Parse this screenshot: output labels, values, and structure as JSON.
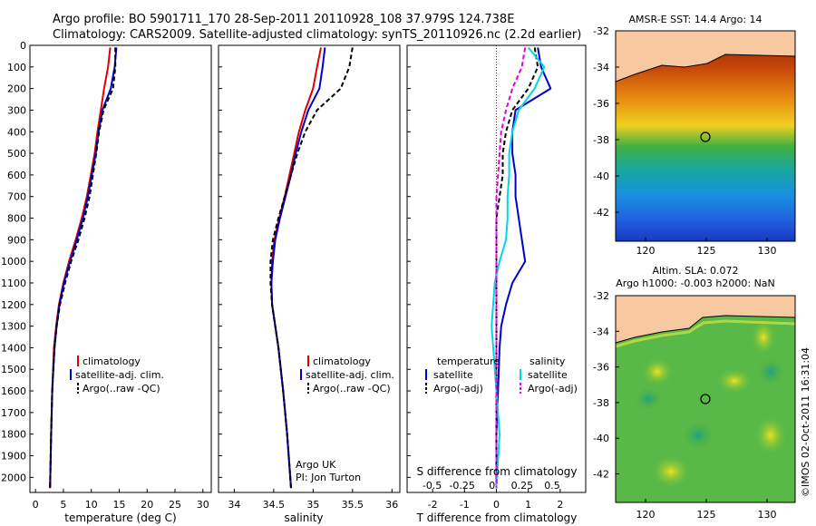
{
  "header": {
    "line1": "Argo profile: BO 5901711_170 28-Sep-2011 20110928_108 37.979S 124.738E",
    "line2": "Climatology: CARS2009. Satellite-adjusted climatology: synTS_20110926.nc (2.2d earlier)"
  },
  "colors": {
    "climatology": "#e00000",
    "satellite_adj": "#0000cc",
    "argo": "#000000",
    "s_satellite": "#00d8e0",
    "s_argo": "#e000e0",
    "land": "#f8c8a0"
  },
  "legend": {
    "climatology": "climatology",
    "satellite_adj": "satellite-adj. clim.",
    "argo": "Argo(..raw -QC)",
    "temperature": "temperature",
    "salinity": "salinity",
    "satellite": "satellite",
    "argo_adj": "Argo(-adj)"
  },
  "credit": {
    "line1": "Argo UK",
    "line2": "PI: Jon Turton"
  },
  "s_diff_label": "S difference from climatology",
  "right_panel": {
    "sst_title": "AMSR-E SST: 14.4 Argo: 14",
    "sla_title1": "Altim. SLA: 0.072",
    "sla_title2": "Argo h1000: -0.003 h2000: NaN",
    "watermark": "©IMOS 02-Oct-2011 16:31:04",
    "lat_ticks": [
      "-32",
      "-34",
      "-36",
      "-38",
      "-40",
      "-42"
    ],
    "lon_ticks": [
      "120",
      "125",
      "130"
    ],
    "profile_marker": {
      "lon": 124.738,
      "lat": -37.979
    }
  },
  "chart_data": [
    {
      "type": "line",
      "name": "temperature-profile",
      "xlabel": "temperature (deg C)",
      "ylabel": "",
      "xlim": [
        -1,
        31.5
      ],
      "ylim": [
        2070,
        0
      ],
      "x_ticks": [
        0,
        5,
        10,
        15,
        20,
        25,
        30
      ],
      "y_ticks": [
        0,
        100,
        200,
        300,
        400,
        500,
        600,
        700,
        800,
        900,
        1000,
        1100,
        1200,
        1300,
        1400,
        1500,
        1600,
        1700,
        1800,
        1900,
        2000
      ],
      "depth": [
        10,
        100,
        200,
        300,
        400,
        500,
        600,
        700,
        800,
        900,
        1000,
        1100,
        1200,
        1300,
        1400,
        1600,
        1800,
        2050
      ],
      "series": [
        {
          "name": "climatology",
          "values": [
            13.4,
            13.0,
            12.3,
            11.7,
            11.1,
            10.6,
            9.9,
            9.2,
            8.3,
            7.2,
            6.0,
            5.0,
            4.2,
            3.7,
            3.3,
            3.0,
            2.8,
            2.6
          ]
        },
        {
          "name": "satellite-adj. clim.",
          "values": [
            14.5,
            14.2,
            13.5,
            12.0,
            11.3,
            10.8,
            10.1,
            9.4,
            8.5,
            7.4,
            6.2,
            5.1,
            4.3,
            3.8,
            3.4,
            3.0,
            2.8,
            2.6
          ]
        },
        {
          "name": "Argo(..raw -QC)",
          "values": [
            14.3,
            14.3,
            13.9,
            12.2,
            11.4,
            10.9,
            10.3,
            9.7,
            8.8,
            7.7,
            6.4,
            5.3,
            4.4,
            3.8,
            3.4,
            3.0,
            2.8,
            2.6
          ]
        }
      ]
    },
    {
      "type": "line",
      "name": "salinity-profile",
      "xlabel": "salinity",
      "ylabel": "",
      "xlim": [
        33.8,
        36.1
      ],
      "ylim": [
        2070,
        0
      ],
      "x_ticks": [
        34,
        34.5,
        35,
        35.5,
        36
      ],
      "depth": [
        10,
        100,
        200,
        300,
        400,
        500,
        600,
        700,
        800,
        900,
        1000,
        1100,
        1200,
        1300,
        1400,
        1600,
        1800,
        2050
      ],
      "series": [
        {
          "name": "climatology",
          "values": [
            35.1,
            35.05,
            35.0,
            34.9,
            34.82,
            34.76,
            34.7,
            34.64,
            34.57,
            34.51,
            34.48,
            34.47,
            34.48,
            34.52,
            34.56,
            34.62,
            34.67,
            34.72
          ]
        },
        {
          "name": "satellite-adj. clim.",
          "values": [
            35.15,
            35.12,
            35.08,
            34.94,
            34.85,
            34.78,
            34.72,
            34.65,
            34.58,
            34.52,
            34.49,
            34.47,
            34.48,
            34.52,
            34.56,
            34.62,
            34.67,
            34.72
          ]
        },
        {
          "name": "Argo(..raw -QC)",
          "values": [
            35.5,
            35.46,
            35.35,
            35.05,
            34.9,
            34.8,
            34.72,
            34.64,
            34.56,
            34.49,
            34.46,
            34.46,
            34.48,
            34.52,
            34.56,
            34.62,
            34.67,
            34.72
          ]
        }
      ]
    },
    {
      "type": "line",
      "name": "difference-profile",
      "xlabel": "T difference from climatology",
      "x2label": "S difference from climatology",
      "xlim": [
        -2.8,
        2.8
      ],
      "ylim": [
        2070,
        0
      ],
      "x_ticks": [
        -2,
        -1,
        0,
        1,
        2
      ],
      "x2_ticks": [
        "-0.5",
        "-0.25",
        "0",
        "0.25",
        "0.5"
      ],
      "depth": [
        10,
        100,
        200,
        300,
        400,
        500,
        600,
        700,
        800,
        900,
        1000,
        1100,
        1200,
        1300,
        1400,
        1600,
        1800,
        2050
      ],
      "series": [
        {
          "name": "temperature satellite",
          "values": [
            1.3,
            1.4,
            1.7,
            0.6,
            0.5,
            0.5,
            0.6,
            0.6,
            0.7,
            0.8,
            0.9,
            0.5,
            0.3,
            0.15,
            0.1,
            0.05,
            0.0,
            0.0
          ]
        },
        {
          "name": "temperature Argo(-adj)",
          "values": [
            1.2,
            1.3,
            1.0,
            0.5,
            0.3,
            0.2,
            0.2,
            0.1,
            0.0,
            0.0,
            0.0,
            0.0,
            0.0,
            0.0,
            0.0,
            0.0,
            0.0,
            0.0
          ]
        },
        {
          "name": "salinity satellite",
          "values": [
            1.0,
            1.5,
            1.2,
            0.7,
            0.5,
            0.4,
            0.4,
            0.35,
            0.35,
            0.3,
            0.1,
            -0.05,
            -0.1,
            -0.15,
            -0.1,
            0.0,
            0.1,
            0.0
          ]
        },
        {
          "name": "salinity Argo(-adj)",
          "values": [
            0.9,
            0.8,
            0.5,
            0.3,
            0.15,
            0.1,
            0.05,
            0.0,
            0.0,
            0.0,
            0.0,
            0.0,
            0.0,
            0.0,
            0.0,
            0.0,
            0.0,
            0.0
          ]
        }
      ]
    }
  ]
}
